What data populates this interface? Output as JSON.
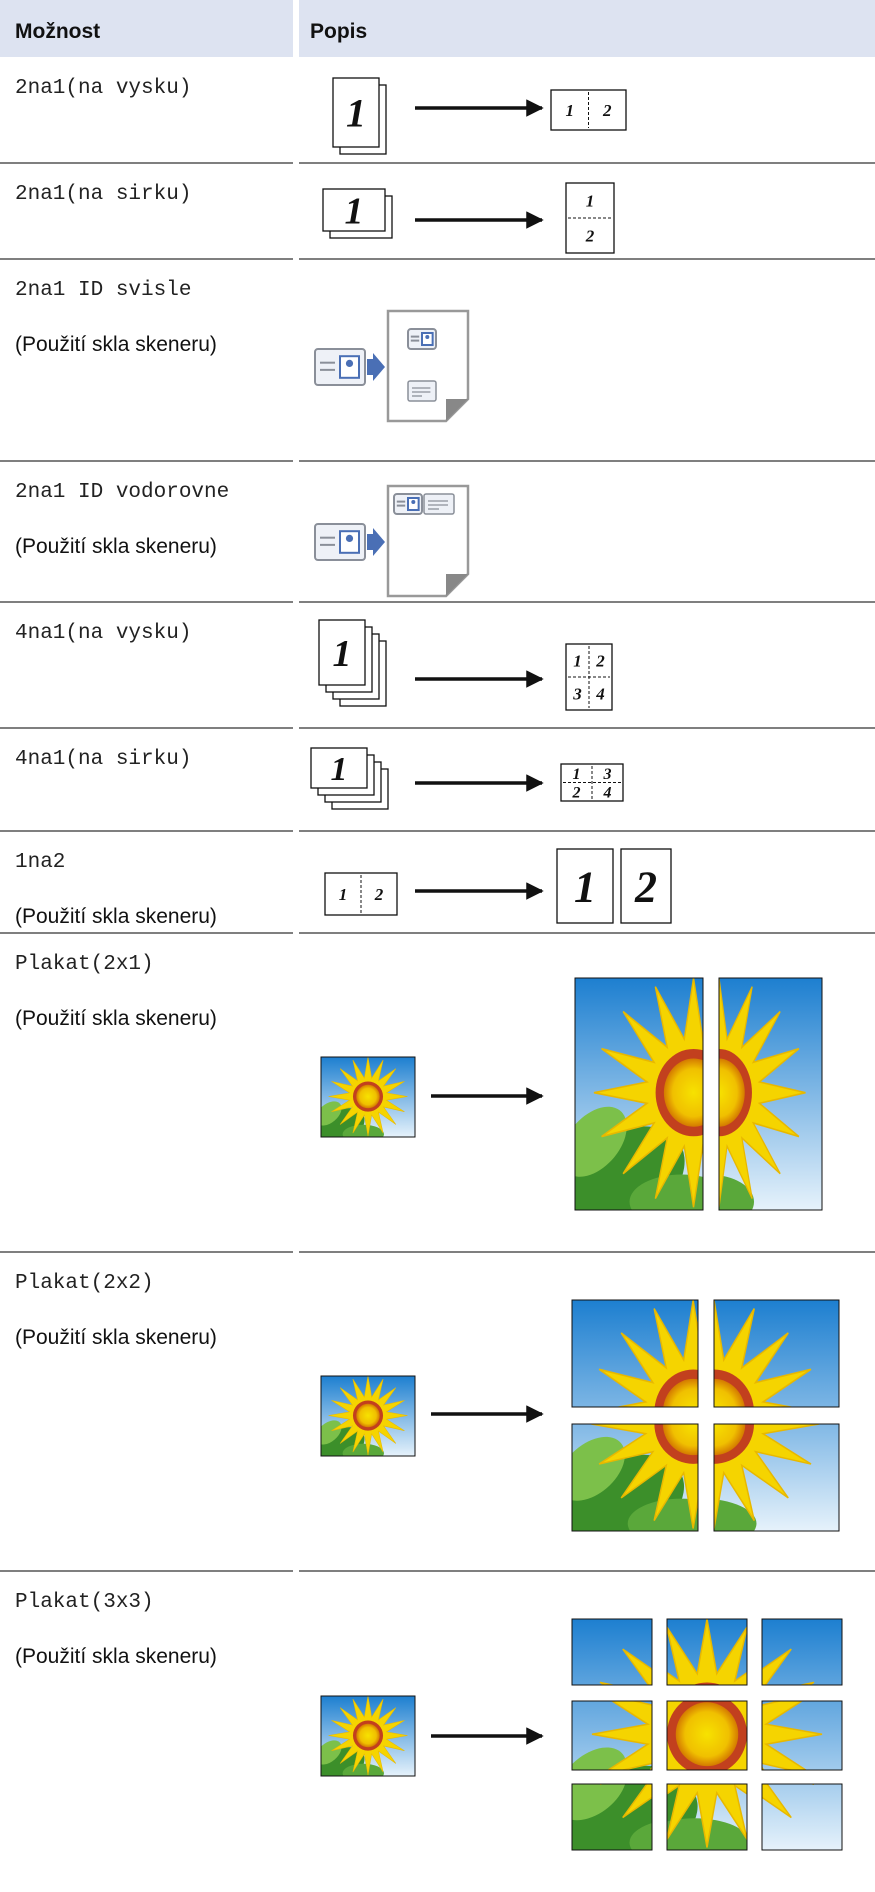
{
  "table": {
    "header": [
      "Možnost",
      "Popis"
    ],
    "rows": [
      {
        "option": "2na1(na vysku)",
        "figure": {
          "source": [
            "1"
          ],
          "result": [
            "1",
            "2"
          ]
        }
      },
      {
        "option": "2na1(na sirku)",
        "figure": {
          "source": [
            "1"
          ],
          "result": [
            "1",
            "2"
          ]
        }
      },
      {
        "option": "2na1 ID svisle",
        "note": "(Použití skla skeneru)"
      },
      {
        "option": "2na1 ID vodorovne",
        "note": "(Použití skla skeneru)"
      },
      {
        "option": "4na1(na vysku)",
        "figure": {
          "source": [
            "1"
          ],
          "result": [
            "1",
            "2",
            "3",
            "4"
          ]
        }
      },
      {
        "option": "4na1(na sirku)",
        "figure": {
          "source": [
            "1"
          ],
          "result": [
            "1",
            "3",
            "2",
            "4"
          ]
        }
      },
      {
        "option": "1na2",
        "note": "(Použití skla skeneru)",
        "figure": {
          "source": [
            "1",
            "2"
          ],
          "result": [
            "1",
            "2"
          ]
        }
      },
      {
        "option": "Plakat(2x1)",
        "note": "(Použití skla skeneru)"
      },
      {
        "option": "Plakat(2x2)",
        "note": "(Použití skla skeneru)"
      },
      {
        "option": "Plakat(3x3)",
        "note": "(Použití skla skeneru)"
      }
    ]
  }
}
